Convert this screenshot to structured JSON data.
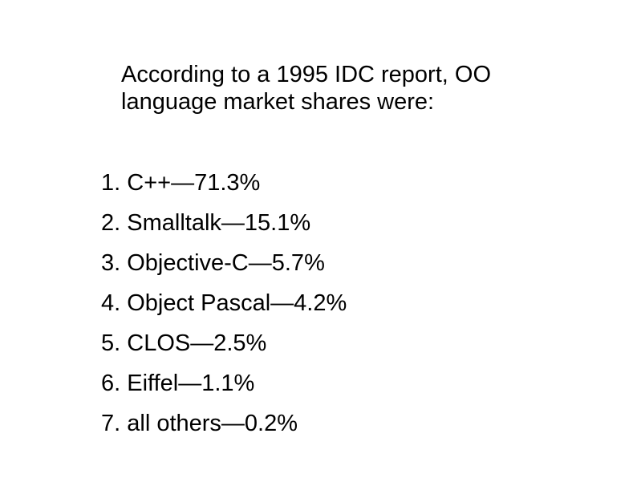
{
  "intro": {
    "line1": "According to a 1995 IDC report, OO",
    "line2": "language market shares were:"
  },
  "items": [
    {
      "number": "1.",
      "language": "C++",
      "share": "71.3%"
    },
    {
      "number": "2.",
      "language": "Smalltalk",
      "share": "15.1%"
    },
    {
      "number": "3.",
      "language": "Objective-C",
      "share": "5.7%"
    },
    {
      "number": "4.",
      "language": "Object Pascal",
      "share": "4.2%"
    },
    {
      "number": "5.",
      "language": "CLOS",
      "share": "2.5%"
    },
    {
      "number": "6.",
      "language": "Eiffel",
      "share": "1.1%"
    },
    {
      "number": "7.",
      "language": "all others",
      "share": "0.2%"
    }
  ]
}
